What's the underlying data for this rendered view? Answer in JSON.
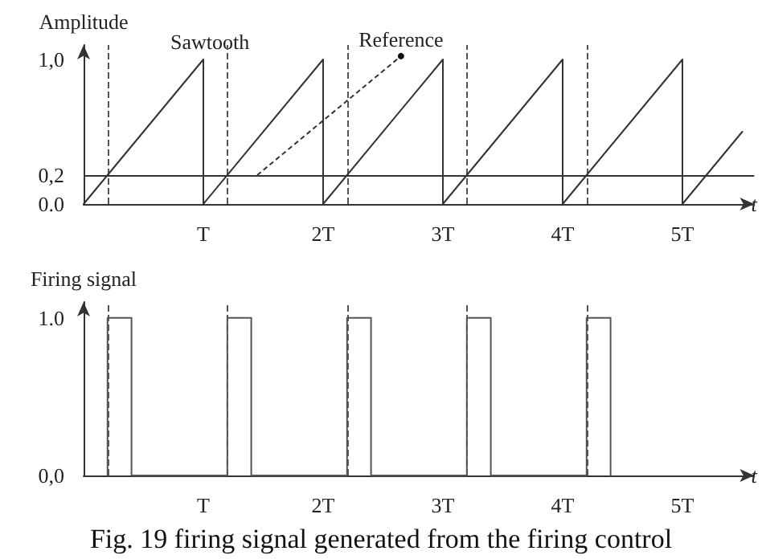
{
  "chart_data": [
    {
      "type": "line",
      "ylabel": "Amplitude",
      "xlabel": "t",
      "xlim": [
        0,
        5.6
      ],
      "ylim": [
        0,
        1.1
      ],
      "xticks": [
        {
          "value": 0,
          "label": null
        },
        {
          "value": 1,
          "label": "T"
        },
        {
          "value": 2,
          "label": "2T"
        },
        {
          "value": 3,
          "label": "3T"
        },
        {
          "value": 4,
          "label": "4T"
        },
        {
          "value": 5,
          "label": "5T"
        }
      ],
      "yticks": [
        {
          "value": 0,
          "label": "0.0"
        },
        {
          "value": 0.2,
          "label": "0,2"
        },
        {
          "value": 1,
          "label": "1,0"
        }
      ],
      "series": [
        {
          "name": "Sawtooth",
          "color": "#333333",
          "x": [
            0,
            1,
            1,
            2,
            2,
            3,
            3,
            4,
            4,
            5,
            5,
            5.5
          ],
          "values": [
            0,
            1,
            0,
            1,
            0,
            1,
            0,
            1,
            0,
            1,
            0,
            0.5
          ]
        }
      ],
      "ref_lines": [
        {
          "axis": "y",
          "value": 0.2,
          "label": "Reference",
          "color": "#333333",
          "line_style": "solid"
        },
        {
          "axis": "x",
          "value": 0.2,
          "color": "#555555",
          "line_style": "dashed"
        },
        {
          "axis": "x",
          "value": 1.2,
          "color": "#555555",
          "line_style": "dashed"
        },
        {
          "axis": "x",
          "value": 2.2,
          "color": "#555555",
          "line_style": "dashed"
        },
        {
          "axis": "x",
          "value": 3.2,
          "color": "#555555",
          "line_style": "dashed"
        },
        {
          "axis": "x",
          "value": 4.2,
          "color": "#555555",
          "line_style": "dashed"
        }
      ],
      "grid": false,
      "legend": "top left",
      "marker": "none",
      "line_style": "solid"
    },
    {
      "type": "line",
      "ylabel": "Firing signal",
      "xlabel": "t",
      "xlim": [
        0,
        5.6
      ],
      "ylim": [
        0,
        1.1
      ],
      "xticks": [
        {
          "value": 1,
          "label": "T"
        },
        {
          "value": 2,
          "label": "2T"
        },
        {
          "value": 3,
          "label": "3T"
        },
        {
          "value": 4,
          "label": "4T"
        },
        {
          "value": 5,
          "label": "5T"
        }
      ],
      "yticks": [
        {
          "value": 0,
          "label": "0,0"
        },
        {
          "value": 1,
          "label": "1.0"
        }
      ],
      "series": [
        {
          "color": "#555555",
          "x": [
            0.2,
            0.2,
            0.4,
            0.4,
            1.2,
            1.2,
            1.4,
            1.4,
            2.2,
            2.2,
            2.4,
            2.4,
            3.2,
            3.2,
            3.4,
            3.4,
            4.2,
            4.2,
            4.4,
            4.4
          ],
          "values": [
            0,
            1,
            1,
            0,
            0,
            1,
            1,
            0,
            0,
            1,
            1,
            0,
            0,
            1,
            1,
            0,
            0,
            1,
            1,
            0
          ]
        }
      ],
      "ref_lines": [
        {
          "axis": "x",
          "value": 0.2,
          "color": "#555555",
          "line_style": "dashed"
        },
        {
          "axis": "x",
          "value": 1.2,
          "color": "#555555",
          "line_style": "dashed"
        },
        {
          "axis": "x",
          "value": 2.2,
          "color": "#555555",
          "line_style": "dashed"
        },
        {
          "axis": "x",
          "value": 3.2,
          "color": "#555555",
          "line_style": "dashed"
        },
        {
          "axis": "x",
          "value": 4.2,
          "color": "#555555",
          "line_style": "dashed"
        }
      ],
      "annotations": [
        "Fig. 19 firing signal generated from the firing control"
      ],
      "grid": false,
      "legend": false,
      "marker": "none",
      "line_style": "solid"
    }
  ]
}
